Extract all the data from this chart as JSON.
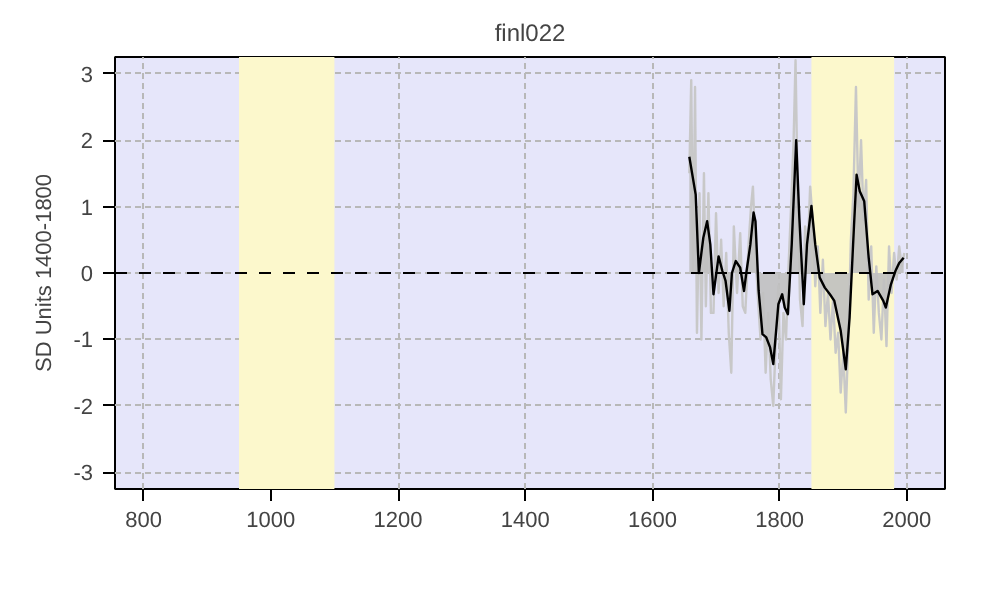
{
  "chart_data": {
    "type": "line",
    "title": "finl022",
    "ylabel": "SD Units 1400-1800",
    "xlim": [
      755,
      2060
    ],
    "ylim": [
      -3.25,
      3.25
    ],
    "xticks": [
      800,
      1000,
      1200,
      1400,
      1600,
      1800,
      2000
    ],
    "yticks": [
      -3,
      -2,
      -1,
      0,
      1,
      2,
      3
    ],
    "grid": true,
    "bands": [
      {
        "axis": "x",
        "from": 950,
        "to": 1100,
        "color": "#fcf8cc"
      },
      {
        "axis": "x",
        "from": 1850,
        "to": 1980,
        "color": "#fcf8cc"
      }
    ],
    "ref_lines": [
      {
        "axis": "y",
        "value": 0,
        "color": "#000000",
        "line_style": "dashed"
      }
    ],
    "series": [
      {
        "color": "#c8c8c8",
        "x": [
          1658,
          1661,
          1664,
          1667,
          1670,
          1674,
          1677,
          1681,
          1684,
          1688,
          1692,
          1696,
          1700,
          1704,
          1708,
          1712,
          1716,
          1720,
          1724,
          1728,
          1733,
          1738,
          1742,
          1746,
          1751,
          1755,
          1758,
          1762,
          1766,
          1770,
          1774,
          1778,
          1782,
          1786,
          1790,
          1794,
          1798,
          1802,
          1806,
          1810,
          1814,
          1818,
          1822,
          1825,
          1828,
          1832,
          1836,
          1840,
          1844,
          1848,
          1852,
          1856,
          1860,
          1864,
          1868,
          1872,
          1876,
          1880,
          1884,
          1888,
          1892,
          1896,
          1900,
          1904,
          1908,
          1912,
          1916,
          1920,
          1924,
          1928,
          1932,
          1936,
          1940,
          1944,
          1948,
          1952,
          1956,
          1960,
          1964,
          1968,
          1972,
          1976,
          1980,
          1984,
          1988,
          1992,
          1996
        ],
        "values": [
          1.5,
          2.9,
          0.0,
          2.8,
          -0.9,
          1.2,
          -1.0,
          1.5,
          -0.5,
          1.2,
          -0.6,
          -0.6,
          0.9,
          -0.3,
          0.5,
          -0.5,
          0.3,
          -0.9,
          -1.5,
          0.7,
          -0.3,
          0.6,
          -0.5,
          -0.6,
          0.4,
          1.0,
          1.3,
          0.3,
          -0.4,
          -1.0,
          -0.3,
          -1.5,
          -0.6,
          -1.6,
          -2.0,
          -1.0,
          -0.2,
          -1.9,
          -0.6,
          -1.0,
          0.1,
          1.0,
          2.0,
          3.2,
          1.4,
          -0.4,
          -0.8,
          0.7,
          0.3,
          1.3,
          0.8,
          -0.2,
          0.4,
          -0.6,
          0.2,
          -0.8,
          -0.3,
          -1.0,
          -0.4,
          -1.2,
          -0.9,
          -1.8,
          -1.2,
          -2.1,
          -1.0,
          0.5,
          1.2,
          2.8,
          1.0,
          2.0,
          0.8,
          1.4,
          -0.4,
          0.4,
          -0.9,
          0.1,
          -0.6,
          -1.0,
          -0.1,
          -1.1,
          0.4,
          -0.3,
          0.3,
          -0.1,
          0.4,
          0.1,
          0.3
        ]
      },
      {
        "type": "area",
        "color": "#000000",
        "x": [
          1658,
          1668,
          1673,
          1680,
          1686,
          1691,
          1696,
          1704,
          1710,
          1715,
          1721,
          1725,
          1731,
          1738,
          1744,
          1748,
          1754,
          1759,
          1762,
          1767,
          1773,
          1779,
          1785,
          1790,
          1798,
          1804,
          1808,
          1813,
          1819,
          1826,
          1831,
          1838,
          1843,
          1850,
          1856,
          1863,
          1871,
          1879,
          1886,
          1896,
          1904,
          1910,
          1917,
          1921,
          1926,
          1933,
          1940,
          1946,
          1954,
          1963,
          1967,
          1975,
          1982,
          1988,
          1995
        ],
        "values": [
          1.75,
          1.18,
          0,
          0.53,
          0.78,
          0.43,
          -0.32,
          0.25,
          0.03,
          -0.12,
          -0.57,
          0,
          0.18,
          0.08,
          -0.27,
          0.03,
          0.43,
          0.91,
          0.78,
          -0.27,
          -0.92,
          -0.97,
          -1.12,
          -1.37,
          -0.47,
          -0.32,
          -0.52,
          -0.62,
          0.43,
          2.0,
          0.83,
          -0.47,
          0.43,
          1.01,
          0.43,
          -0.07,
          -0.22,
          -0.32,
          -0.42,
          -0.87,
          -1.45,
          -0.67,
          0.73,
          1.48,
          1.23,
          1.08,
          0.23,
          -0.32,
          -0.27,
          -0.42,
          -0.52,
          -0.17,
          0.03,
          0.15,
          0.23
        ]
      }
    ]
  }
}
